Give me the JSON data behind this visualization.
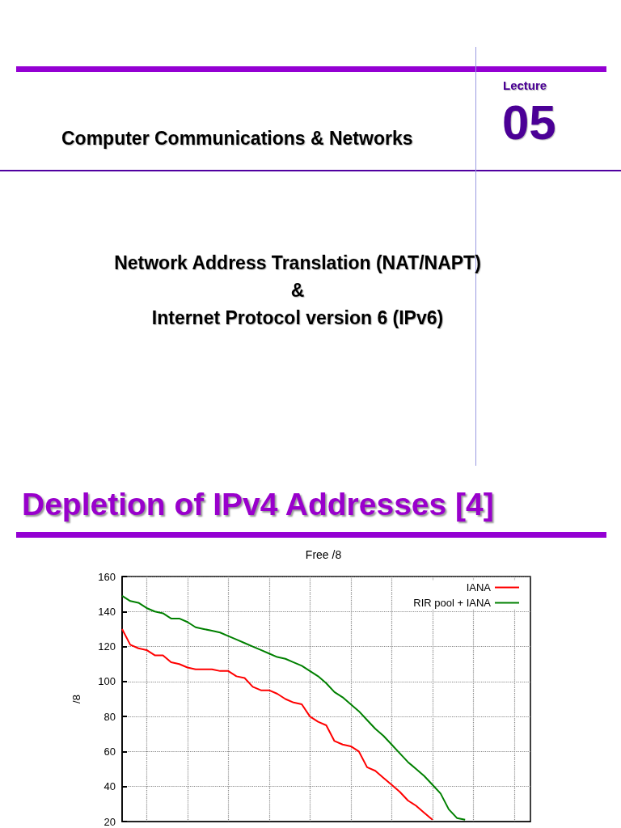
{
  "chart_data": {
    "type": "line",
    "title": "Free /8",
    "ylabel": "/8",
    "annotations": [
      "Computer Communications & Networks",
      "Lecture",
      "05",
      "Network Address Translation (NAT/NAPT)",
      "&",
      "Internet Protocol version 6 (IPv6)",
      "Depletion of IPv4 Addresses [4]"
    ],
    "categories": [
      null,
      null,
      null,
      null,
      null,
      null,
      null,
      null,
      null,
      null,
      null,
      null,
      null,
      null,
      null,
      null,
      null,
      null,
      null,
      null,
      null,
      null,
      null,
      null,
      null,
      null,
      null,
      null,
      null,
      null,
      null,
      null,
      null,
      null,
      null,
      null,
      null,
      null,
      null,
      null,
      null,
      null,
      null,
      null,
      null,
      null,
      null,
      null,
      null,
      null,
      null
    ],
    "series": [
      {
        "name": "IANA",
        "color": "#ff0000",
        "values": [
          130,
          121,
          119,
          118,
          115,
          115,
          111,
          110,
          108,
          107,
          107,
          107,
          106,
          106,
          103,
          102,
          97,
          95,
          95,
          93,
          90,
          88,
          87,
          80,
          77,
          75,
          66,
          64,
          63,
          60,
          51,
          49,
          45,
          41,
          37,
          32,
          29,
          25,
          21,
          null,
          null,
          null,
          null,
          null,
          null,
          null,
          null,
          null,
          null,
          null,
          null
        ]
      },
      {
        "name": "RIR pool + IANA",
        "color": "#008000",
        "values": [
          149,
          146,
          145,
          142,
          140,
          139,
          136,
          136,
          134,
          131,
          130,
          129,
          128,
          126,
          124,
          122,
          120,
          118,
          116,
          114,
          113,
          111,
          109,
          106,
          103,
          99,
          94,
          91,
          87,
          83,
          78,
          73,
          69,
          64,
          59,
          54,
          50,
          46,
          41,
          36,
          27,
          22,
          21,
          null,
          null,
          null,
          null,
          null,
          null,
          null,
          null
        ]
      }
    ],
    "ylim": [
      20,
      160
    ],
    "yticks": [
      20,
      40,
      60,
      80,
      100,
      120,
      140,
      160
    ],
    "grid": true,
    "legend": "top right",
    "marker": "none"
  }
}
